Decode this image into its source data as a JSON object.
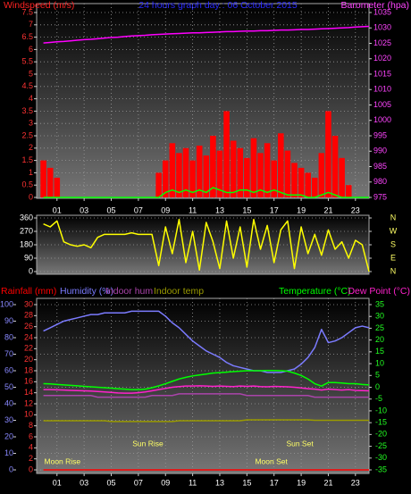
{
  "chart_data": [
    {
      "type": "combo",
      "title": "24 hours graph day : 06 October 2015",
      "ylabel": "Windspeed (m/s)",
      "y2label": "Barometer (hpa)",
      "x": [
        0,
        0.5,
        1,
        1.5,
        2,
        2.5,
        3,
        3.5,
        4,
        4.5,
        5,
        5.5,
        6,
        6.5,
        7,
        7.5,
        8,
        8.5,
        9,
        9.5,
        10,
        10.5,
        11,
        11.5,
        12,
        12.5,
        13,
        13.5,
        14,
        14.5,
        15,
        15.5,
        16,
        16.5,
        17,
        17.5,
        18,
        18.5,
        19,
        19.5,
        20,
        20.5,
        21,
        21.5,
        22,
        22.5,
        23,
        23.5,
        24
      ],
      "xlim": [
        -0.5,
        24
      ],
      "xticks": [
        {
          "value": 1,
          "label": "01"
        },
        {
          "value": 3,
          "label": "03"
        },
        {
          "value": 5,
          "label": "05"
        },
        {
          "value": 7,
          "label": "07"
        },
        {
          "value": 9,
          "label": "09"
        },
        11,
        13,
        15,
        17,
        19,
        21,
        23
      ],
      "ylim": [
        0,
        7.5
      ],
      "yticks": [
        0,
        0.5,
        1,
        1.5,
        2,
        2.5,
        3,
        3.5,
        4,
        4.5,
        5,
        5.5,
        6,
        6.5,
        7,
        7.5
      ],
      "y2lim": [
        975,
        1035
      ],
      "y2ticks": [
        975,
        980,
        985,
        990,
        995,
        1000,
        1005,
        1010,
        1015,
        1020,
        1025,
        1030,
        1035
      ],
      "grid": true,
      "series": [
        {
          "kind": "bar",
          "axis": "y",
          "color": "#ff0000",
          "values": [
            1.5,
            1.2,
            0.8,
            0,
            0,
            0,
            0,
            0,
            0,
            0,
            0,
            0,
            0,
            0,
            0,
            0,
            0,
            1.0,
            1.5,
            2.2,
            1.8,
            2.0,
            1.5,
            2.1,
            1.7,
            2.5,
            1.9,
            3.5,
            2.3,
            2.0,
            1.6,
            2.4,
            1.8,
            2.2,
            1.5,
            2.6,
            1.9,
            1.4,
            1.2,
            1.0,
            0.8,
            1.8,
            3.5,
            2.5,
            1.6,
            0.5,
            0,
            0,
            0
          ]
        },
        {
          "kind": "line",
          "axis": "y",
          "color": "#00ff00",
          "values": [
            0,
            0,
            0,
            0,
            0,
            0,
            0,
            0,
            0,
            0,
            0,
            0,
            0,
            0,
            0,
            0,
            0,
            0,
            0.2,
            0.3,
            0.2,
            0.3,
            0.2,
            0.3,
            0.2,
            0.4,
            0.3,
            0.2,
            0.2,
            0.3,
            0.3,
            0.2,
            0.3,
            0.2,
            0.3,
            0.2,
            0.1,
            0.1,
            0.1,
            0,
            0,
            0.1,
            0.2,
            0.1,
            0,
            0,
            0,
            0,
            0
          ]
        },
        {
          "kind": "line",
          "axis": "y2",
          "color": "#ff00ff",
          "values": [
            1025.1,
            1025.3,
            1025.5,
            1025.6,
            1025.8,
            1026.0,
            1026.2,
            1026.3,
            1026.5,
            1026.7,
            1026.9,
            1027.0,
            1027.2,
            1027.4,
            1027.5,
            1027.6,
            1027.8,
            1027.9,
            1028.0,
            1028.1,
            1028.2,
            1028.3,
            1028.4,
            1028.4,
            1028.5,
            1028.6,
            1028.7,
            1028.8,
            1028.8,
            1028.9,
            1029.0,
            1029.0,
            1029.1,
            1029.1,
            1029.2,
            1029.3,
            1029.3,
            1029.4,
            1029.5,
            1029.5,
            1029.6,
            1029.7,
            1029.8,
            1029.9,
            1030.0,
            1030.1,
            1030.3,
            1030.4,
            1030.5
          ]
        }
      ]
    },
    {
      "type": "line",
      "x": [
        0,
        0.5,
        1,
        1.5,
        2,
        2.5,
        3,
        3.5,
        4,
        4.5,
        5,
        5.5,
        6,
        6.5,
        7,
        7.5,
        8,
        8.5,
        9,
        9.5,
        10,
        10.5,
        11,
        11.5,
        12,
        12.5,
        13,
        13.5,
        14,
        14.5,
        15,
        15.5,
        16,
        16.5,
        17,
        17.5,
        18,
        18.5,
        19,
        19.5,
        20,
        20.5,
        21,
        21.5,
        22,
        22.5,
        23,
        23.5,
        24
      ],
      "xlim": [
        -0.5,
        24
      ],
      "ylim": [
        0,
        360
      ],
      "yticks": [
        0,
        90,
        180,
        270,
        360
      ],
      "y2lim": [
        0,
        360
      ],
      "y2ticks": [
        {
          "value": 0,
          "label": "N"
        },
        {
          "value": 90,
          "label": "E"
        },
        {
          "value": 180,
          "label": "S"
        },
        {
          "value": 270,
          "label": "W"
        },
        {
          "value": 360,
          "label": "N"
        }
      ],
      "grid": true,
      "series": [
        {
          "kind": "line",
          "axis": "y",
          "color": "#ffff00",
          "values": [
            320,
            300,
            340,
            200,
            180,
            170,
            180,
            160,
            230,
            250,
            250,
            250,
            250,
            260,
            250,
            250,
            250,
            40,
            300,
            120,
            350,
            60,
            270,
            10,
            330,
            200,
            20,
            340,
            90,
            300,
            30,
            350,
            150,
            310,
            60,
            280,
            340,
            20,
            300,
            120,
            250,
            110,
            280,
            150,
            200,
            90,
            210,
            180,
            0
          ]
        }
      ]
    },
    {
      "type": "line",
      "x": [
        0,
        0.5,
        1,
        1.5,
        2,
        2.5,
        3,
        3.5,
        4,
        4.5,
        5,
        5.5,
        6,
        6.5,
        7,
        7.5,
        8,
        8.5,
        9,
        9.5,
        10,
        10.5,
        11,
        11.5,
        12,
        12.5,
        13,
        13.5,
        14,
        14.5,
        15,
        15.5,
        16,
        16.5,
        17,
        17.5,
        18,
        18.5,
        19,
        19.5,
        20,
        20.5,
        21,
        21.5,
        22,
        22.5,
        23,
        23.5,
        24
      ],
      "xlim": [
        -0.5,
        24
      ],
      "xticks": [
        {
          "value": 1,
          "label": "01"
        },
        {
          "value": 3,
          "label": "03"
        },
        {
          "value": 5,
          "label": "05"
        },
        {
          "value": 7,
          "label": "07"
        },
        {
          "value": 9,
          "label": "09"
        },
        11,
        13,
        15,
        17,
        19,
        21,
        23
      ],
      "ylim": [
        0,
        100
      ],
      "yticks": [
        0,
        10,
        20,
        30,
        40,
        50,
        60,
        70,
        80,
        90,
        100
      ],
      "y3lim": [
        0,
        30
      ],
      "y3ticks": [
        0,
        2,
        4,
        6,
        8,
        10,
        12,
        14,
        16,
        18,
        20,
        22,
        24,
        26,
        28,
        30
      ],
      "y2lim": [
        -35,
        35
      ],
      "y2ticks": [
        -35,
        -30,
        -25,
        -20,
        -15,
        -10,
        -5,
        0,
        5,
        10,
        15,
        20,
        25,
        30,
        35
      ],
      "grid": true,
      "series": [
        {
          "name": "Rainfall (mm)",
          "kind": "line",
          "axis": "y3",
          "color": "#ff0000",
          "values": [
            0,
            0,
            0,
            0,
            0,
            0,
            0,
            0,
            0,
            0,
            0,
            0,
            0,
            0,
            0,
            0,
            0,
            0,
            0,
            0,
            0,
            0,
            0,
            0,
            0,
            0,
            0,
            0,
            0,
            0,
            0,
            0,
            0,
            0,
            0,
            0,
            0,
            0,
            0,
            0,
            0,
            0,
            0,
            0,
            0,
            0,
            0,
            0,
            0
          ]
        },
        {
          "name": "Humidity (%)",
          "kind": "line",
          "axis": "y",
          "color": "#7b7bff",
          "values": [
            84,
            86,
            88,
            90,
            91,
            92,
            93,
            94,
            94,
            95,
            95,
            95,
            95,
            96,
            96,
            96,
            96,
            96,
            93,
            89,
            86,
            82,
            78,
            75,
            72,
            70,
            68,
            65,
            63,
            62,
            61,
            60,
            60,
            59,
            59,
            59,
            60,
            61,
            64,
            68,
            74,
            85,
            77,
            78,
            80,
            83,
            86,
            87,
            86
          ]
        },
        {
          "name": "Indoor hum",
          "kind": "line",
          "axis": "y",
          "color": "#aa44aa",
          "values": [
            45,
            45,
            45,
            45,
            45,
            45,
            45,
            45,
            44,
            44,
            44,
            44,
            44,
            44,
            44,
            44,
            45,
            45,
            45,
            45,
            46,
            46,
            46,
            46,
            46,
            46,
            46,
            46,
            46,
            46,
            45,
            45,
            45,
            45,
            45,
            45,
            45,
            45,
            45,
            45,
            44,
            44,
            44,
            44,
            44,
            44,
            44,
            44,
            44
          ]
        },
        {
          "name": "Indoor temp",
          "kind": "line",
          "axis": "y2",
          "color": "#9a9a00",
          "values": [
            -14.2,
            -14.2,
            -14.2,
            -14.2,
            -14.2,
            -14.2,
            -14.2,
            -14.2,
            -14.2,
            -14.2,
            -14.5,
            -14.5,
            -14.5,
            -14.5,
            -14.5,
            -14.5,
            -14.5,
            -14.5,
            -14.5,
            -14.5,
            -14.2,
            -14.2,
            -14.2,
            -14.2,
            -14.2,
            -14.2,
            -14.2,
            -14.2,
            -14.2,
            -14.2,
            -13.8,
            -13.8,
            -13.8,
            -13.8,
            -13.8,
            -13.8,
            -13.8,
            -13.8,
            -13.8,
            -13.8,
            -14.0,
            -14.0,
            -14.0,
            -14.0,
            -14.0,
            -14.0,
            -14.0,
            -14.0,
            -14.0
          ]
        },
        {
          "name": "Temperature (°C)",
          "kind": "line",
          "axis": "y2",
          "color": "#00ff00",
          "values": [
            1.5,
            1.4,
            1.2,
            1.0,
            0.8,
            0.6,
            0.4,
            0.2,
            0,
            -0.2,
            -0.4,
            -0.6,
            -0.8,
            -1.0,
            -1.0,
            -0.8,
            -0.2,
            0.6,
            1.5,
            2.5,
            3.5,
            4.2,
            4.8,
            5.2,
            5.6,
            6.0,
            6.2,
            6.4,
            6.6,
            6.8,
            7.0,
            7.0,
            7.0,
            7.1,
            7.1,
            7.0,
            6.8,
            6.0,
            5.0,
            3.5,
            1.5,
            0.5,
            2.0,
            2.0,
            1.8,
            1.5,
            1.5,
            1.2,
            1.0
          ]
        },
        {
          "name": "Dew Point (°C)",
          "kind": "line",
          "axis": "y2",
          "color": "#ff22cc",
          "values": [
            -1.0,
            -1.0,
            -1.1,
            -1.2,
            -1.3,
            -1.4,
            -1.5,
            -1.6,
            -1.8,
            -2.0,
            -2.2,
            -2.4,
            -2.5,
            -2.5,
            -2.3,
            -2.0,
            -1.5,
            -1.0,
            -0.5,
            0,
            0.3,
            0.5,
            0.5,
            0.6,
            0.5,
            0.4,
            0.5,
            0.4,
            0.3,
            0.5,
            0.4,
            0.5,
            0.3,
            0.2,
            0.4,
            0.3,
            0.2,
            0.0,
            -0.3,
            -0.6,
            -0.8,
            -1.2,
            -0.8,
            -1.0,
            -1.2,
            -1.0,
            -1.3,
            -1.4,
            -1.5
          ]
        }
      ],
      "events": [
        {
          "label": "Moon Rise",
          "x": 1.4
        },
        {
          "label": "Sun Rise",
          "x": 7.7
        },
        {
          "label": "Sun Set",
          "x": 18.9
        },
        {
          "label": "Moon Set",
          "x": 16.8
        }
      ]
    }
  ]
}
